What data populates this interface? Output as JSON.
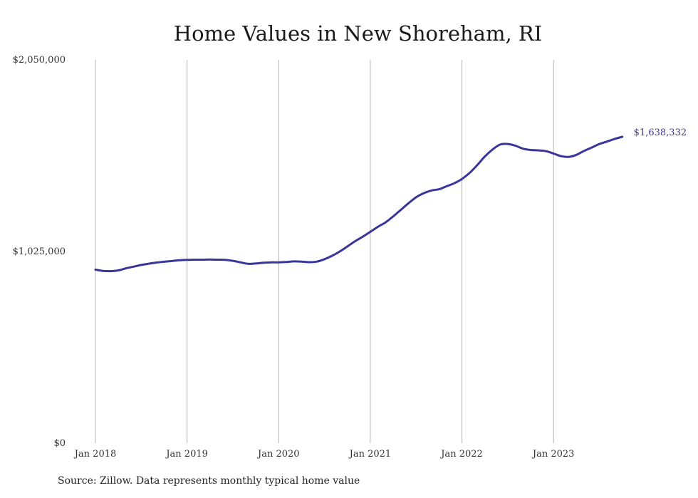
{
  "source_note": "Source: Zillow. Data represents monthly typical home value",
  "chart_data": {
    "type": "line",
    "title": "Home Values in New Shoreham, RI",
    "xlabel": "",
    "ylabel": "",
    "ylim": [
      0,
      2050000
    ],
    "y_ticks": [
      0,
      1025000,
      2050000
    ],
    "y_tick_labels": [
      "$0",
      "$1,025,000",
      "$2,050,000"
    ],
    "x_ticks": [
      "2018-01",
      "2019-01",
      "2020-01",
      "2021-01",
      "2022-01",
      "2023-01"
    ],
    "x_tick_labels": [
      "Jan 2018",
      "Jan 2019",
      "Jan 2020",
      "Jan 2021",
      "Jan 2022",
      "Jan 2023"
    ],
    "grid": "vertical",
    "line_color": "#3a3599",
    "end_label": "$1,638,332",
    "series": [
      {
        "x": [
          "2018-01",
          "2018-02",
          "2018-03",
          "2018-04",
          "2018-05",
          "2018-06",
          "2018-07",
          "2018-08",
          "2018-09",
          "2018-10",
          "2018-11",
          "2018-12",
          "2019-01",
          "2019-02",
          "2019-03",
          "2019-04",
          "2019-05",
          "2019-06",
          "2019-07",
          "2019-08",
          "2019-09",
          "2019-10",
          "2019-11",
          "2019-12",
          "2020-01",
          "2020-02",
          "2020-03",
          "2020-04",
          "2020-05",
          "2020-06",
          "2020-07",
          "2020-08",
          "2020-09",
          "2020-10",
          "2020-11",
          "2020-12",
          "2021-01",
          "2021-02",
          "2021-03",
          "2021-04",
          "2021-05",
          "2021-06",
          "2021-07",
          "2021-08",
          "2021-09",
          "2021-10",
          "2021-11",
          "2021-12",
          "2022-01",
          "2022-02",
          "2022-03",
          "2022-04",
          "2022-05",
          "2022-06",
          "2022-07",
          "2022-08",
          "2022-09",
          "2022-10",
          "2022-11",
          "2022-12",
          "2023-01",
          "2023-02",
          "2023-03",
          "2023-04",
          "2023-05",
          "2023-06",
          "2023-07",
          "2023-08",
          "2023-09",
          "2023-10"
        ],
        "values": [
          928000,
          921000,
          920000,
          924000,
          935000,
          944000,
          953000,
          960000,
          966000,
          970000,
          974000,
          978000,
          980000,
          981000,
          981000,
          982000,
          981000,
          980000,
          975000,
          967000,
          959000,
          961000,
          965000,
          967000,
          967000,
          969000,
          972000,
          971000,
          968000,
          971000,
          984000,
          1002000,
          1025000,
          1052000,
          1080000,
          1104000,
          1130000,
          1157000,
          1181000,
          1213000,
          1248000,
          1283000,
          1315000,
          1337000,
          1351000,
          1358000,
          1374000,
          1390000,
          1413000,
          1445000,
          1487000,
          1533000,
          1570000,
          1597000,
          1600000,
          1591000,
          1575000,
          1568000,
          1566000,
          1562000,
          1549000,
          1535000,
          1531000,
          1542000,
          1563000,
          1581000,
          1600000,
          1613000,
          1627000,
          1638332
        ]
      }
    ]
  }
}
